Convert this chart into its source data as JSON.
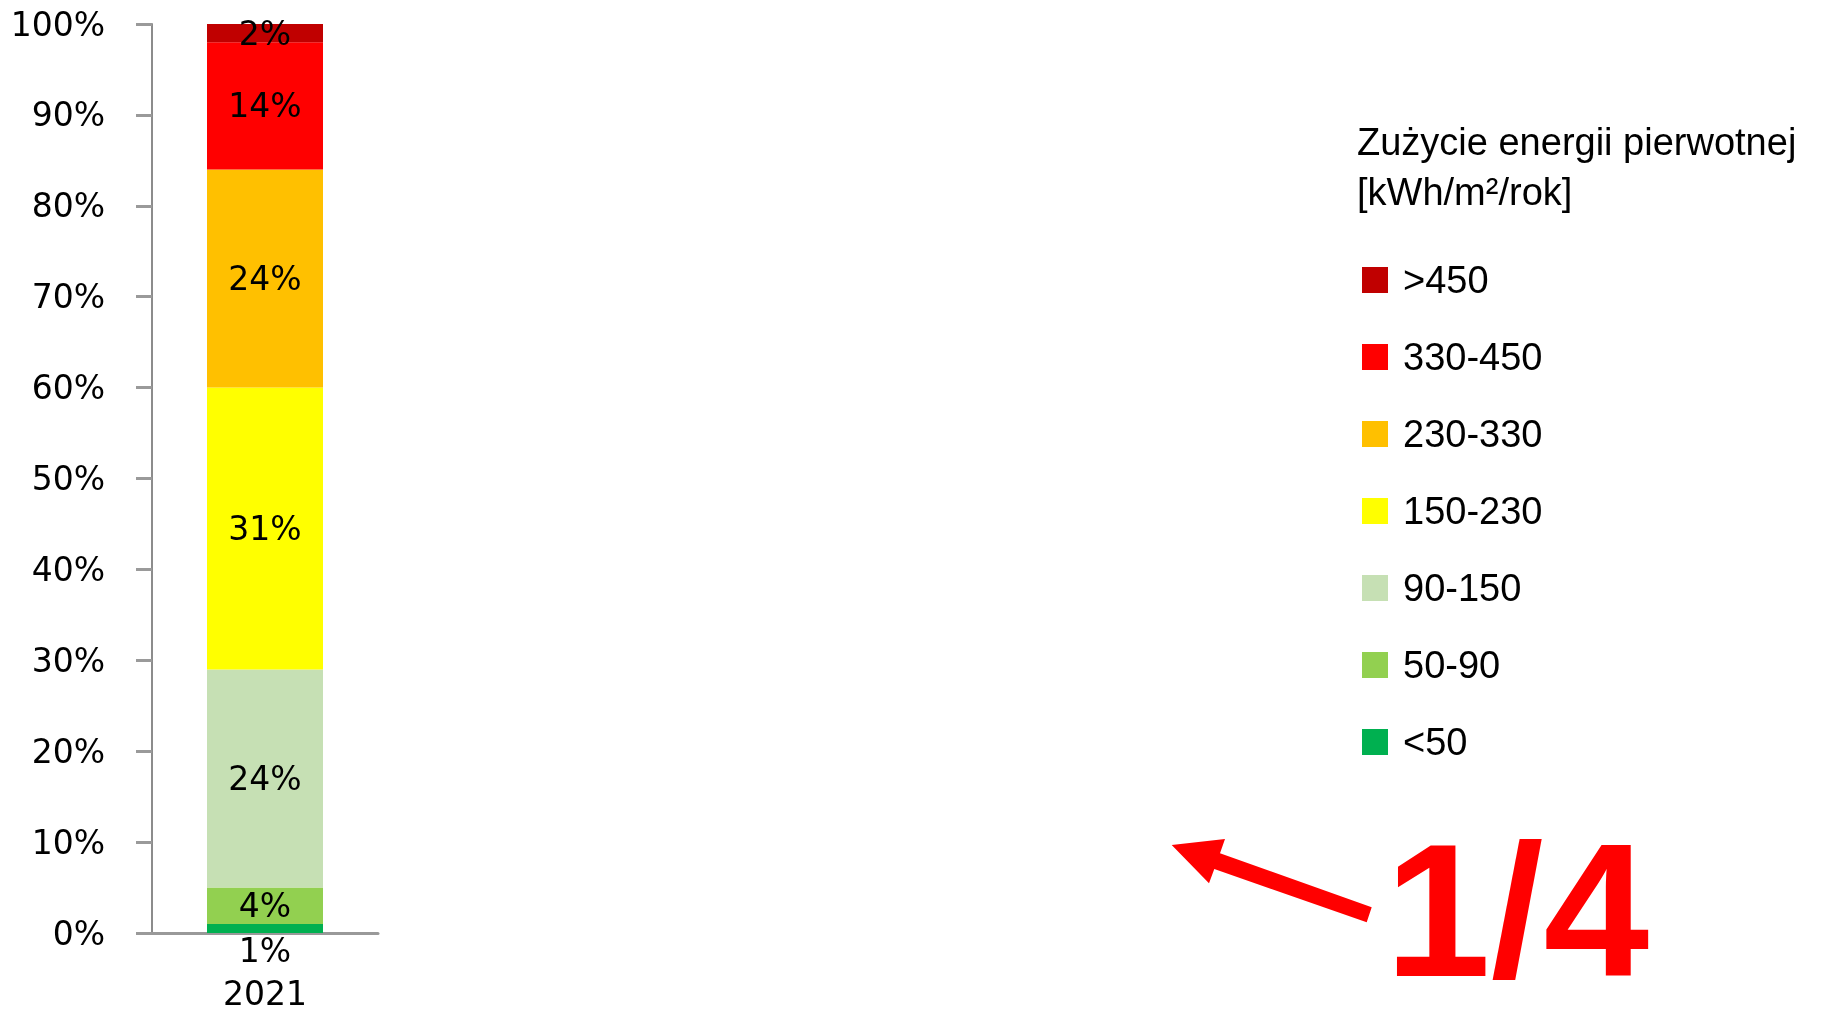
{
  "chart_data": {
    "type": "bar",
    "stacked": true,
    "legend_title": "Zużycie energii pierwotnej [kWh/m²/rok]",
    "annotations": [
      "1/4"
    ],
    "categories": [
      "2021"
    ],
    "series": [
      {
        "name": "<50",
        "color": "#00b050",
        "values": [
          1
        ],
        "value_labels": [
          "1%"
        ]
      },
      {
        "name": "50-90",
        "color": "#92d050",
        "values": [
          4
        ],
        "value_labels": [
          "4%"
        ]
      },
      {
        "name": "90-150",
        "color": "#c6e0b4",
        "values": [
          24
        ],
        "value_labels": [
          "24%"
        ]
      },
      {
        "name": "150-230",
        "color": "#ffff00",
        "values": [
          31
        ],
        "value_labels": [
          "31%"
        ]
      },
      {
        "name": "230-330",
        "color": "#ffc000",
        "values": [
          24
        ],
        "value_labels": [
          "24%"
        ]
      },
      {
        "name": "330-450",
        "color": "#ff0000",
        "values": [
          14
        ],
        "value_labels": [
          "14%"
        ]
      },
      {
        "name": ">450",
        "color": "#c00000",
        "values": [
          2
        ],
        "value_labels": [
          "2%"
        ]
      }
    ],
    "ylim": [
      0,
      100
    ],
    "yticks": [
      {
        "value": 0,
        "label": "0%"
      },
      {
        "value": 10,
        "label": "10%"
      },
      {
        "value": 20,
        "label": "20%"
      },
      {
        "value": 30,
        "label": "30%"
      },
      {
        "value": 40,
        "label": "40%"
      },
      {
        "value": 50,
        "label": "50%"
      },
      {
        "value": 60,
        "label": "60%"
      },
      {
        "value": 70,
        "label": "70%"
      },
      {
        "value": 80,
        "label": "80%"
      },
      {
        "value": 90,
        "label": "90%"
      },
      {
        "value": 100,
        "label": "100%"
      }
    ],
    "grid": false,
    "legend": "right"
  }
}
